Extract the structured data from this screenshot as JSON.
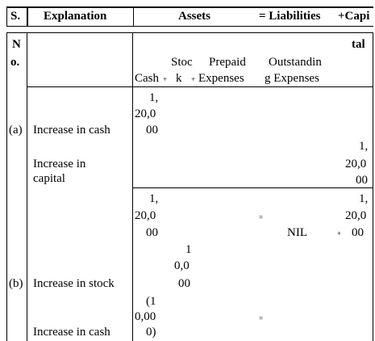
{
  "header": {
    "sno": "S.",
    "explanation": "Explanation",
    "assets": "Assets",
    "liabilities": "= Liabilities",
    "capital": "+Capi"
  },
  "subheader": {
    "sno_top": "N",
    "sno_bottom": "o.",
    "capital_tail": "tal",
    "cash": "Cash",
    "stock_top": "Stoc",
    "stock_bottom": "k",
    "prepaid_top": "Prepaid",
    "prepaid_bottom": "Expenses",
    "outstanding_top": "Outstandin",
    "outstanding_bottom": "g Expenses",
    "plus": "+"
  },
  "rows": {
    "a_label": "(a)",
    "a_text": "Increase in cash",
    "a_cash": [
      "1,",
      "20,0",
      "00"
    ],
    "a2_text_1": "Increase in",
    "a2_text_2": "capital",
    "a2_capital": [
      "1,",
      "20,0",
      "00"
    ],
    "bal_cash": [
      "1,",
      "20,0",
      "00"
    ],
    "bal_eq": "=",
    "bal_nil": "NIL",
    "bal_plus": "+",
    "bal_capital": [
      "1,",
      "20,0",
      "00"
    ],
    "b_label": "(b)",
    "b_text": "Increase in stock",
    "b_stock": [
      "1",
      "0,0",
      "00"
    ],
    "b2_text": "Increase in cash",
    "b2_cash": [
      "(1",
      "0,00",
      "0)"
    ],
    "b2_eq": "="
  }
}
